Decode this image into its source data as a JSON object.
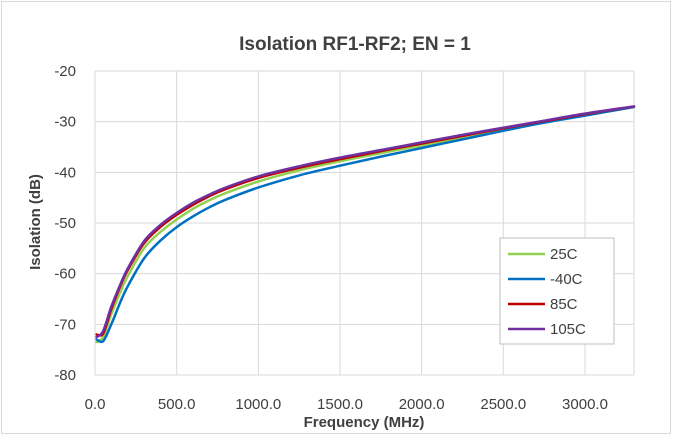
{
  "chart_data": {
    "type": "line",
    "title": "Isolation RF1-RF2; EN = 1",
    "xlabel": "Frequency (MHz)",
    "ylabel": "Isolation (dB)",
    "xlim": [
      0,
      3300
    ],
    "ylim": [
      -80,
      -20
    ],
    "xticks": [
      0,
      500,
      1000,
      1500,
      2000,
      2500,
      3000
    ],
    "xtick_labels": [
      "0.0",
      "500.0",
      "1000.0",
      "1500.0",
      "2000.0",
      "2500.0",
      "3000.0"
    ],
    "yticks": [
      -20,
      -30,
      -40,
      -50,
      -60,
      -70,
      -80
    ],
    "ytick_labels": [
      "-20",
      "-30",
      "-40",
      "-50",
      "-60",
      "-70",
      "-80"
    ],
    "grid": true,
    "legend_position": "right",
    "series": [
      {
        "name": "25C",
        "color": "#92d050",
        "x": [
          10,
          50,
          100,
          150,
          200,
          300,
          400,
          500,
          600,
          700,
          800,
          1000,
          1250,
          1500,
          1750,
          2000,
          2250,
          2500,
          2750,
          3000,
          3300
        ],
        "y": [
          -73.5,
          -72.5,
          -68,
          -64,
          -60.5,
          -55,
          -51.8,
          -49.3,
          -47.2,
          -45.5,
          -44.1,
          -41.8,
          -39.6,
          -37.8,
          -36.2,
          -34.7,
          -33.1,
          -31.5,
          -30,
          -28.6,
          -27
        ]
      },
      {
        "name": "-40C",
        "color": "#0070c0",
        "x": [
          10,
          50,
          100,
          150,
          200,
          300,
          400,
          500,
          600,
          700,
          800,
          1000,
          1250,
          1500,
          1750,
          2000,
          2250,
          2500,
          2750,
          3000,
          3300
        ],
        "y": [
          -73,
          -73.3,
          -70,
          -66,
          -62.5,
          -57,
          -53.5,
          -50.8,
          -48.7,
          -46.9,
          -45.4,
          -43,
          -40.6,
          -38.7,
          -36.9,
          -35.2,
          -33.5,
          -31.8,
          -30.2,
          -28.8,
          -27.1
        ]
      },
      {
        "name": "85C",
        "color": "#c00000",
        "x": [
          10,
          50,
          100,
          150,
          200,
          300,
          400,
          500,
          600,
          700,
          800,
          1000,
          1250,
          1500,
          1750,
          2000,
          2250,
          2500,
          2750,
          3000,
          3300
        ],
        "y": [
          -72,
          -71.8,
          -67,
          -62.8,
          -59.3,
          -54,
          -50.8,
          -48.4,
          -46.4,
          -44.7,
          -43.3,
          -41.1,
          -39.1,
          -37.4,
          -35.8,
          -34.3,
          -32.8,
          -31.3,
          -29.9,
          -28.5,
          -27
        ]
      },
      {
        "name": "105C",
        "color": "#7030a0",
        "x": [
          10,
          50,
          100,
          150,
          200,
          300,
          400,
          500,
          600,
          700,
          800,
          1000,
          1250,
          1500,
          1750,
          2000,
          2250,
          2500,
          2750,
          3000,
          3300
        ],
        "y": [
          -72.5,
          -71.3,
          -66.5,
          -62.5,
          -59,
          -53.6,
          -50.4,
          -48,
          -46,
          -44.4,
          -43,
          -40.8,
          -38.8,
          -37.1,
          -35.6,
          -34.1,
          -32.6,
          -31.2,
          -29.8,
          -28.4,
          -27
        ]
      }
    ]
  }
}
